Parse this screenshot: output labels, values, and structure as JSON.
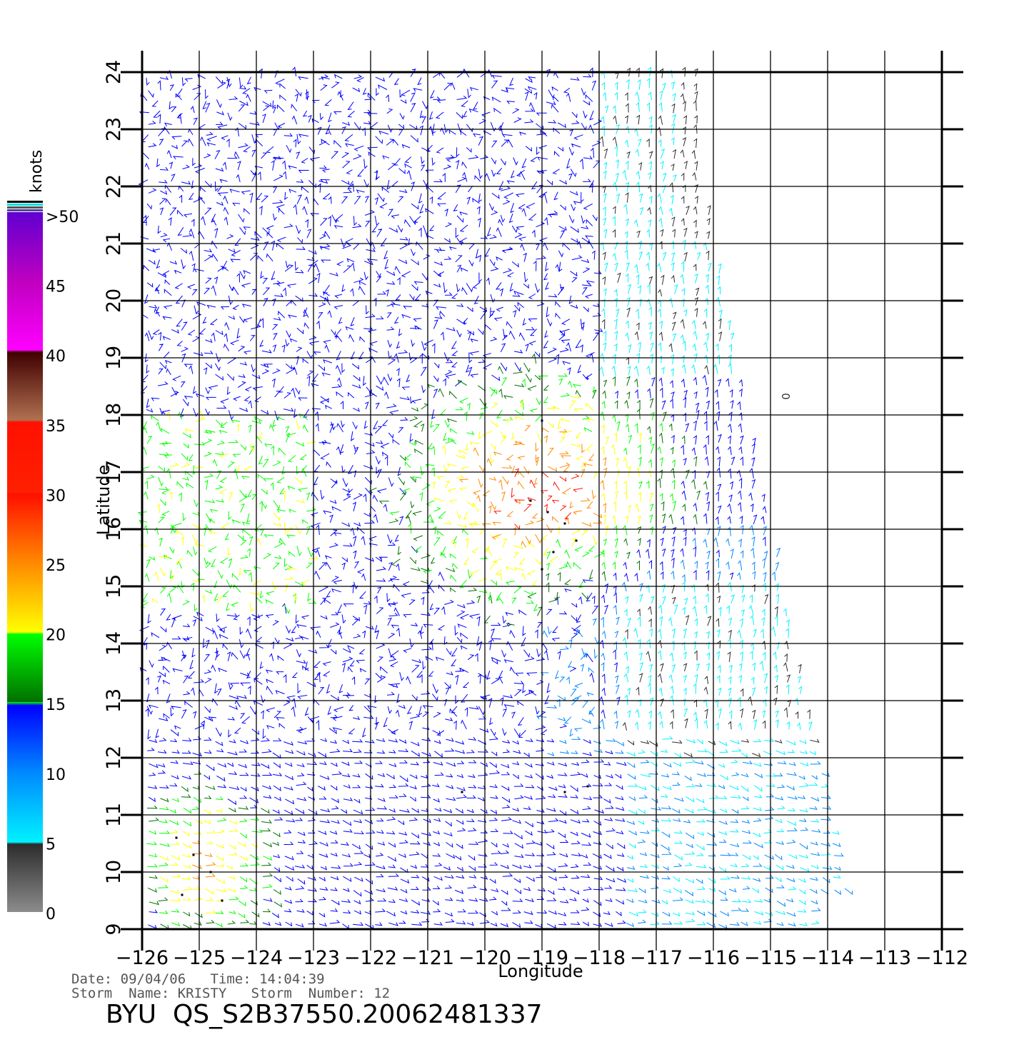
{
  "map": {
    "lon_ticks": [
      "-126",
      "-125",
      "-124",
      "-123",
      "-122",
      "-121",
      "-120",
      "-119",
      "-118",
      "-117",
      "-116",
      "-115",
      "-114",
      "-113",
      "-112"
    ],
    "lat_ticks": [
      "9",
      "10",
      "11",
      "12",
      "13",
      "14",
      "15",
      "16",
      "17",
      "18",
      "19",
      "20",
      "21",
      "22",
      "23",
      "24"
    ],
    "lon_range": [
      -126,
      -112
    ],
    "lat_range": [
      9,
      24
    ],
    "xlabel": "Longitude",
    "ylabel": "Latitude",
    "marker": "0"
  },
  "colorbar": {
    "title": "knots",
    "labels": [
      ">50",
      "45",
      "40",
      "35",
      "30",
      "25",
      "20",
      "15",
      "10",
      "5",
      "0"
    ],
    "colors": {
      "gray_bottom": "#8c8c8c",
      "gray_top": "#2c2c2c",
      "cyan": "#00f2ff",
      "blue_light": "#0088ff",
      "blue": "#0000ff",
      "green_dark": "#007000",
      "green": "#00ff00",
      "yellow": "#ffff00",
      "orange": "#ff8800",
      "red": "#ff1000",
      "brown_light": "#b07050",
      "brown_dark": "#400000",
      "magenta": "#ff00ff",
      "purple": "#9000c0",
      "violet": "#6000d0"
    }
  },
  "info": {
    "date_line": "Date: 09/04/06   Time: 14:04:39",
    "storm_line": "Storm  Name: KRISTY   Storm  Number: 12",
    "file_title": "BYU  QS_S2B37550.20062481337"
  }
}
